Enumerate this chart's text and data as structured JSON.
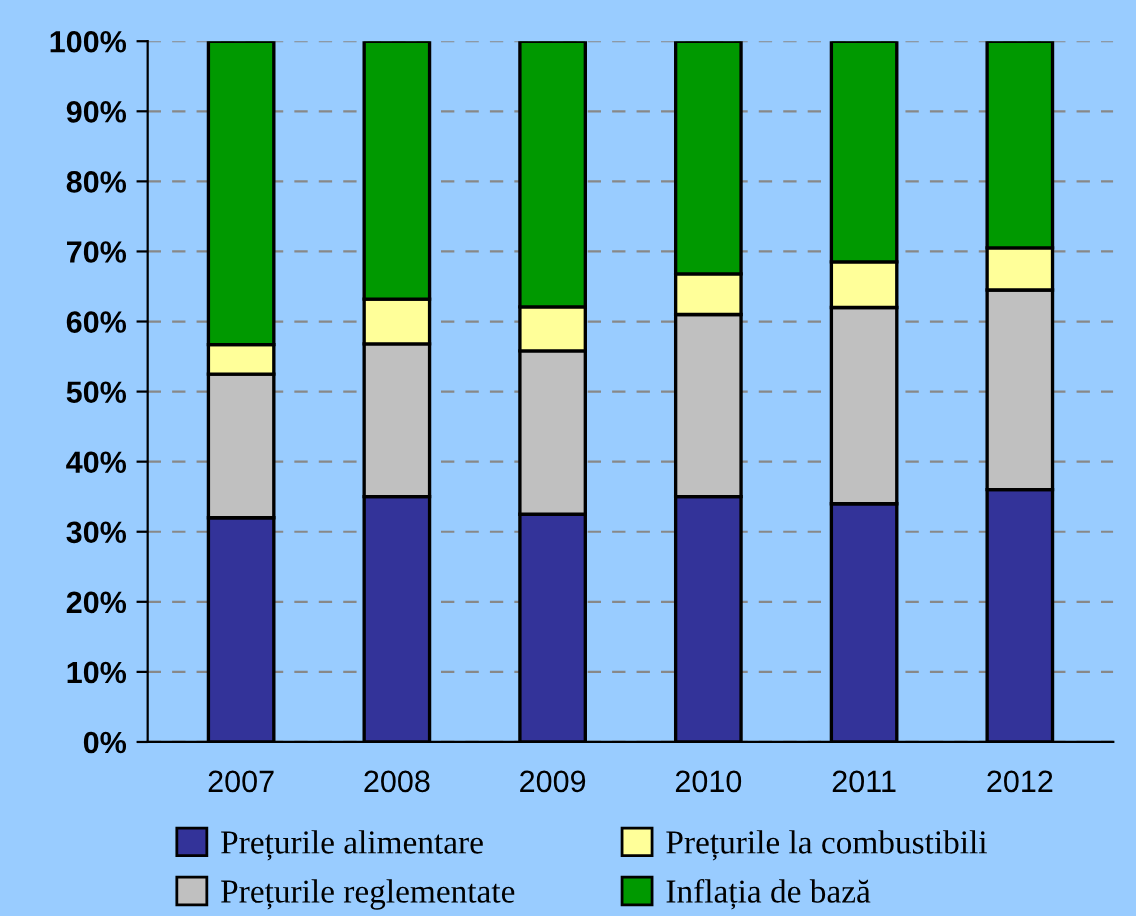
{
  "chart_data": {
    "type": "bar",
    "stacked": true,
    "categories": [
      "2007",
      "2008",
      "2009",
      "2010",
      "2011",
      "2012"
    ],
    "series": [
      {
        "name": "Prețurile alimentare",
        "color": "#333399",
        "values": [
          32,
          35,
          32.5,
          35,
          34,
          36
        ]
      },
      {
        "name": "Prețurile reglementate",
        "color": "#c0c0c0",
        "values": [
          20.5,
          21.8,
          23.3,
          26,
          28,
          28.5
        ]
      },
      {
        "name": "Prețurile la combustibili",
        "color": "#ffff99",
        "values": [
          4.2,
          6.4,
          6.3,
          5.8,
          6.5,
          6
        ]
      },
      {
        "name": "Inflația de bază",
        "color": "#009900",
        "values": [
          43.3,
          36.8,
          37.9,
          33.2,
          31.5,
          29.5
        ]
      }
    ],
    "ylim": [
      0,
      100
    ],
    "yticks": [
      {
        "value": 0,
        "label": "0%"
      },
      {
        "value": 10,
        "label": "10%"
      },
      {
        "value": 20,
        "label": "20%"
      },
      {
        "value": 30,
        "label": "30%"
      },
      {
        "value": 40,
        "label": "40%"
      },
      {
        "value": 50,
        "label": "50%"
      },
      {
        "value": 60,
        "label": "60%"
      },
      {
        "value": 70,
        "label": "70%"
      },
      {
        "value": 80,
        "label": "80%"
      },
      {
        "value": 90,
        "label": "90%"
      },
      {
        "value": 100,
        "label": "100%"
      }
    ],
    "grid": "y",
    "legend": "bottom"
  }
}
